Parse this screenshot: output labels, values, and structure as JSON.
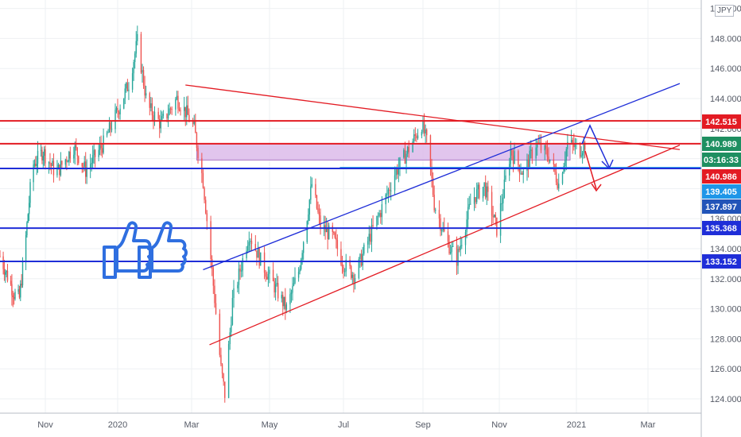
{
  "chart_data": {
    "type": "candlestick",
    "y_axis": {
      "range": [
        123.0,
        150.3
      ],
      "ticks": [
        "124.000",
        "126.000",
        "128.000",
        "130.000",
        "132.000",
        "134.000",
        "136.000",
        "138.000",
        "140.000",
        "142.000",
        "144.000",
        "146.000",
        "148.000",
        "150.000"
      ]
    },
    "x_axis": {
      "ticks": [
        "Nov",
        "2020",
        "Mar",
        "May",
        "Jul",
        "Sep",
        "Nov",
        "2021",
        "Mar"
      ]
    },
    "currency_label": "JPY",
    "price_labels": [
      {
        "text": "142.515",
        "color": "#e31b23"
      },
      {
        "text": "140.989",
        "color": "#1e8f61"
      },
      {
        "text": "03:16:33",
        "color": "#1e8f61"
      },
      {
        "text": "140.986",
        "color": "#e31b23"
      },
      {
        "text": "139.405",
        "color": "#1e96e8"
      },
      {
        "text": "137.897",
        "color": "#2254b8"
      },
      {
        "text": "135.368",
        "color": "#1f2ed8"
      },
      {
        "text": "133.152",
        "color": "#1f2ed8"
      }
    ],
    "horizontal_levels": [
      {
        "value": 142.515,
        "color": "#e31b23"
      },
      {
        "value": 140.989,
        "color": "#e31b23"
      },
      {
        "value": 139.405,
        "color": "#1e96e8"
      },
      {
        "value": 135.368,
        "color": "#1f2ed8"
      },
      {
        "value": 133.152,
        "color": "#1f2ed8"
      }
    ],
    "zone": {
      "from": 139.9,
      "to": 141.0,
      "color": "#d9b7e9"
    },
    "trendlines": [
      {
        "color": "#e31b23",
        "points": [
          [
            "2020-02-25",
            144.9
          ],
          [
            "2021-03-25",
            140.6
          ]
        ]
      },
      {
        "color": "#e31b23",
        "points": [
          [
            "2020-03-15",
            127.6
          ],
          [
            "2021-03-25",
            140.9
          ]
        ]
      },
      {
        "color": "#1f2ed8",
        "points": [
          [
            "2020-03-10",
            132.6
          ],
          [
            "2021-03-25",
            145.0
          ]
        ]
      }
    ],
    "candle_colors": {
      "up": "#26a69a",
      "down": "#ef5350"
    },
    "grid": true
  }
}
